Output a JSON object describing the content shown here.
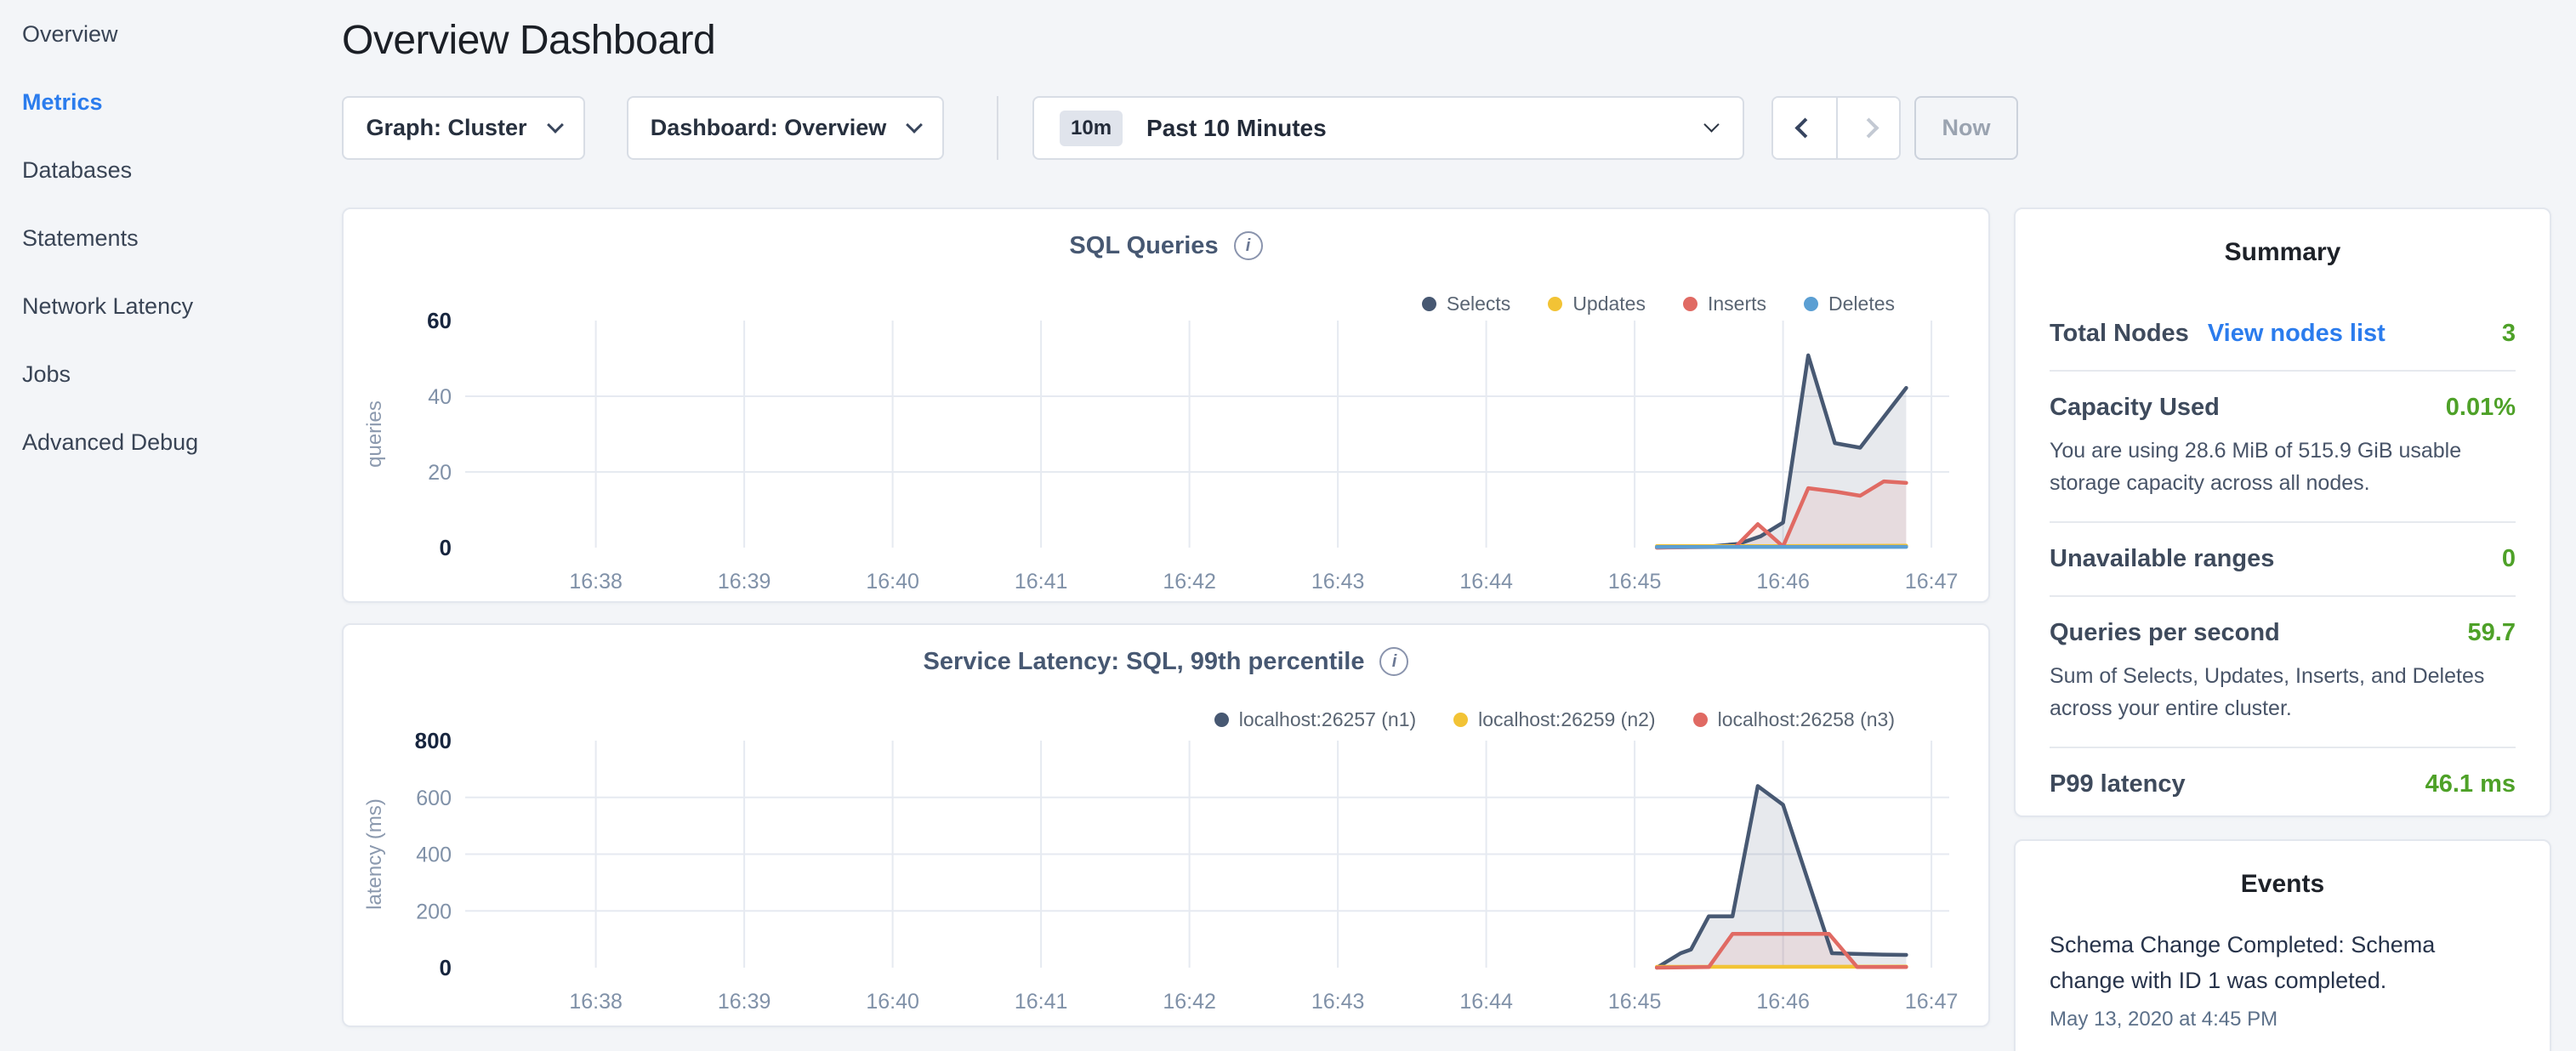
{
  "sidebar": {
    "items": [
      {
        "label": "Overview",
        "active": false
      },
      {
        "label": "Metrics",
        "active": true
      },
      {
        "label": "Databases",
        "active": false
      },
      {
        "label": "Statements",
        "active": false
      },
      {
        "label": "Network Latency",
        "active": false
      },
      {
        "label": "Jobs",
        "active": false
      },
      {
        "label": "Advanced Debug",
        "active": false
      }
    ]
  },
  "header": {
    "title": "Overview Dashboard"
  },
  "toolbar": {
    "graph_dropdown": "Graph: Cluster",
    "dashboard_dropdown": "Dashboard: Overview",
    "time_badge": "10m",
    "time_label": "Past 10 Minutes",
    "now_label": "Now"
  },
  "summary": {
    "title": "Summary",
    "rows": [
      {
        "label": "Total Nodes",
        "link": "View nodes list",
        "value": "3"
      },
      {
        "label": "Capacity Used",
        "value": "0.01%",
        "description": "You are using 28.6 MiB of 515.9 GiB usable storage capacity across all nodes."
      },
      {
        "label": "Unavailable ranges",
        "value": "0"
      },
      {
        "label": "Queries per second",
        "value": "59.7",
        "description": "Sum of Selects, Updates, Inserts, and Deletes across your entire cluster."
      },
      {
        "label": "P99 latency",
        "value": "46.1 ms"
      }
    ],
    "accent_green": "#4ea128",
    "link_blue": "#2b7ced"
  },
  "events": {
    "title": "Events",
    "items": [
      {
        "text": "Schema Change Completed: Schema change with ID 1 was completed.",
        "timestamp": "May 13, 2020 at 4:45 PM"
      }
    ]
  },
  "chart_data": [
    {
      "type": "line",
      "title": "SQL Queries",
      "ylabel": "queries",
      "x_ticks": [
        "16:38",
        "16:39",
        "16:40",
        "16:41",
        "16:42",
        "16:43",
        "16:44",
        "16:45",
        "16:46",
        "16:47"
      ],
      "x_domain": [
        -0.88,
        9.12
      ],
      "ylim": [
        0,
        60
      ],
      "y_ticks": [
        0,
        20,
        40,
        60
      ],
      "grid_y": [
        20,
        40
      ],
      "legend_position": "top-right",
      "series": [
        {
          "name": "Selects",
          "color": "#475872",
          "fill": "rgba(71,88,114,0.13)",
          "points": [
            [
              7.15,
              0
            ],
            [
              7.5,
              0.3
            ],
            [
              7.7,
              1
            ],
            [
              7.85,
              3
            ],
            [
              8.0,
              6.6
            ],
            [
              8.17,
              50.8
            ],
            [
              8.35,
              27.6
            ],
            [
              8.52,
              26.4
            ],
            [
              8.83,
              42.2
            ]
          ]
        },
        {
          "name": "Updates",
          "color": "#f2c335",
          "fill": "rgba(242,195,53,0.15)",
          "points": [
            [
              7.15,
              0.4
            ],
            [
              8.0,
              0.4
            ],
            [
              8.83,
              0.5
            ]
          ]
        },
        {
          "name": "Inserts",
          "color": "#e06a63",
          "fill": "rgba(224,106,99,0.11)",
          "points": [
            [
              7.15,
              0
            ],
            [
              7.68,
              0.2
            ],
            [
              7.83,
              6.2
            ],
            [
              8.0,
              0.3
            ],
            [
              8.17,
              15.7
            ],
            [
              8.35,
              14.8
            ],
            [
              8.52,
              13.7
            ],
            [
              8.68,
              17.5
            ],
            [
              8.83,
              17.1
            ]
          ]
        },
        {
          "name": "Deletes",
          "color": "#5b9fd3",
          "fill": "rgba(91,159,211,0.12)",
          "points": [
            [
              7.15,
              0.15
            ],
            [
              8.0,
              0.15
            ],
            [
              8.83,
              0.2
            ]
          ]
        }
      ]
    },
    {
      "type": "line",
      "title": "Service Latency: SQL, 99th percentile",
      "ylabel": "latency (ms)",
      "x_ticks": [
        "16:38",
        "16:39",
        "16:40",
        "16:41",
        "16:42",
        "16:43",
        "16:44",
        "16:45",
        "16:46",
        "16:47"
      ],
      "x_domain": [
        -0.88,
        9.12
      ],
      "ylim": [
        0,
        800
      ],
      "y_ticks": [
        0,
        200,
        400,
        600,
        800
      ],
      "grid_y": [
        200,
        400,
        600
      ],
      "legend_position": "top-right",
      "series": [
        {
          "name": "localhost:26257 (n1)",
          "color": "#475872",
          "fill": "rgba(71,88,114,0.13)",
          "points": [
            [
              7.15,
              0
            ],
            [
              7.31,
              51
            ],
            [
              7.38,
              64
            ],
            [
              7.5,
              181
            ],
            [
              7.66,
              181
            ],
            [
              7.83,
              640
            ],
            [
              8.0,
              574
            ],
            [
              8.33,
              51
            ],
            [
              8.67,
              46
            ],
            [
              8.83,
              45
            ]
          ]
        },
        {
          "name": "localhost:26259 (n2)",
          "color": "#f2c335",
          "fill": "rgba(242,195,53,0.15)",
          "points": [
            [
              7.15,
              3
            ],
            [
              8.0,
              3
            ],
            [
              8.83,
              4
            ]
          ]
        },
        {
          "name": "localhost:26258 (n3)",
          "color": "#e06a63",
          "fill": "rgba(224,106,99,0.11)",
          "points": [
            [
              7.15,
              0
            ],
            [
              7.5,
              2
            ],
            [
              7.66,
              119
            ],
            [
              8.31,
              119
            ],
            [
              8.5,
              2
            ],
            [
              8.83,
              2
            ]
          ]
        }
      ]
    }
  ]
}
